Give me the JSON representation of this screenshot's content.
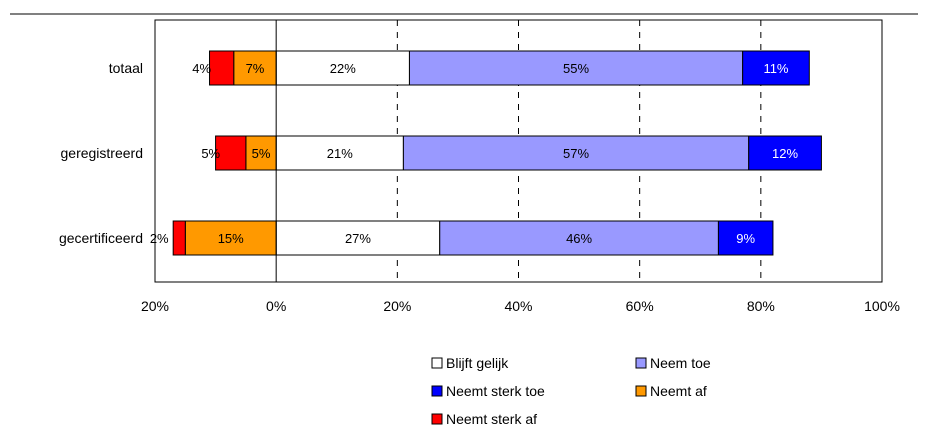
{
  "chart_data": {
    "type": "bar",
    "orientation": "horizontal",
    "stacked": true,
    "diverging": true,
    "title": "",
    "xlabel": "",
    "ylabel": "",
    "xlim": [
      -20,
      100
    ],
    "xticks": [
      -20,
      0,
      20,
      40,
      60,
      80,
      100
    ],
    "xtick_labels": [
      "20%",
      "0%",
      "20%",
      "40%",
      "60%",
      "80%",
      "100%"
    ],
    "grid": "vertical dashed at 20, 40, 60, 80",
    "legend_placement": "bottom-center",
    "categories": [
      "totaal",
      "geregistreerd",
      "gecertificeerd"
    ],
    "series": [
      {
        "name": "Blijft gelijk",
        "color": "#ffffff",
        "side": "positive",
        "values": [
          22,
          21,
          27
        ],
        "labels": [
          "22%",
          "21%",
          "27%"
        ]
      },
      {
        "name": "Neem toe",
        "color": "#9999ff",
        "side": "positive",
        "values": [
          55,
          57,
          46
        ],
        "labels": [
          "55%",
          "57%",
          "46%"
        ]
      },
      {
        "name": "Neemt sterk toe",
        "color": "#0000ff",
        "side": "positive",
        "values": [
          11,
          12,
          9
        ],
        "labels": [
          "11%",
          "12%",
          "9%"
        ]
      },
      {
        "name": "Neemt af",
        "color": "#ff9900",
        "side": "negative",
        "values": [
          7,
          5,
          15
        ],
        "labels": [
          "7%",
          "5%",
          "15%"
        ]
      },
      {
        "name": "Neemt sterk af",
        "color": "#ff0000",
        "side": "negative",
        "values": [
          4,
          5,
          2
        ],
        "labels": [
          "4%",
          "5%",
          "2%"
        ]
      }
    ]
  }
}
